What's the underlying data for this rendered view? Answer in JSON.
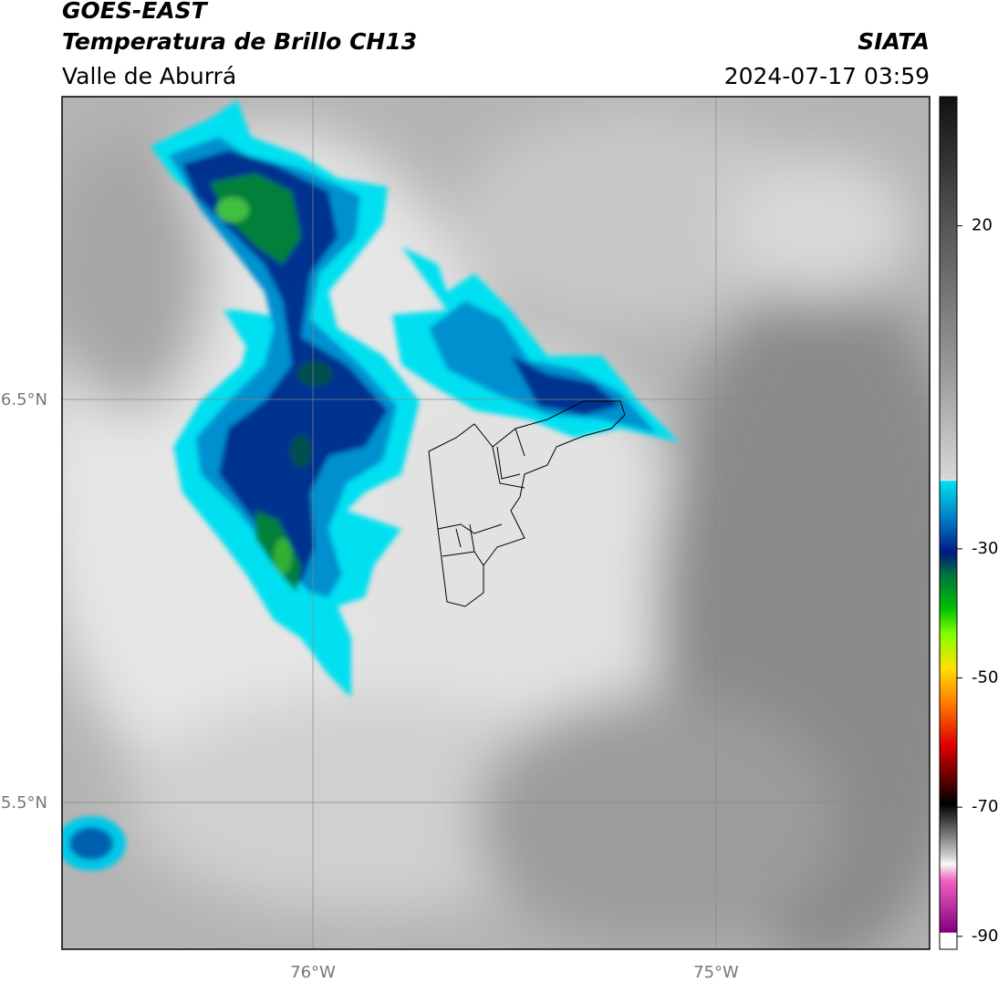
{
  "header": {
    "title": "GOES-EAST",
    "subtitle": "Temperatura de Brillo CH13",
    "region": "Valle de Aburrá",
    "agency": "SIATA",
    "datetime": "2024-07-17 03:59"
  },
  "map": {
    "lat_labels": [
      "6.5°N",
      "5.5°N"
    ],
    "lon_labels": [
      "76°W",
      "75°W"
    ]
  },
  "colorbar": {
    "lim": [
      -92,
      40
    ],
    "ticks": [
      20,
      -30,
      -50,
      -70,
      -90
    ]
  }
}
